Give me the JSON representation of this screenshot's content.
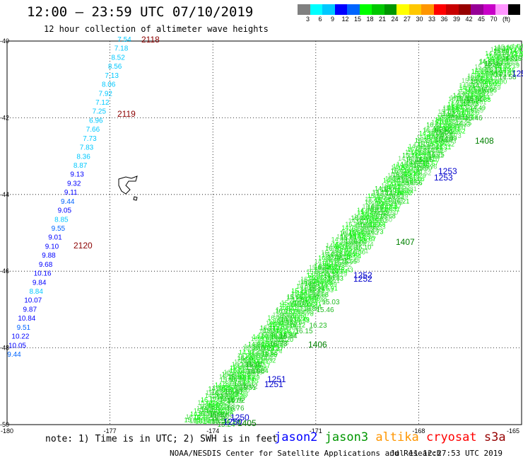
{
  "header": {
    "title": "12:00 – 23:59 UTC 07/10/2019",
    "subtitle": "12 hour collection of altimeter wave heights"
  },
  "scale": {
    "colors": [
      "#808080",
      "#00ffff",
      "#00c8ff",
      "#0000ff",
      "#0064ff",
      "#00ff00",
      "#00c800",
      "#009600",
      "#ffff00",
      "#ffc800",
      "#ff9600",
      "#ff0000",
      "#c80000",
      "#960000",
      "#960096",
      "#c800c8",
      "#ff96ff",
      "#000000"
    ],
    "labels": [
      "3",
      "6",
      "9",
      "12",
      "15",
      "18",
      "21",
      "24",
      "27",
      "30",
      "33",
      "36",
      "39",
      "42",
      "45",
      "70",
      "(ft)"
    ]
  },
  "chart_data": {
    "type": "scatter",
    "xlim": [
      -180,
      -165
    ],
    "ylim": [
      -50,
      -40
    ],
    "x_ticks": [
      "-180",
      "-177",
      "-174",
      "-171",
      "-168",
      "-165"
    ],
    "y_ticks": [
      "-40",
      "-42",
      "-44",
      "-46",
      "-48",
      "-50"
    ],
    "grid": true,
    "west_track_swh": [
      "7.54",
      "7.18",
      "8.52",
      "8.56",
      "7.13",
      "8.06",
      "7.92",
      "7.12",
      "7.25",
      "6.96",
      "7.66",
      "7.73",
      "7.83",
      "8.36",
      "8.87",
      "9.13",
      "9.32",
      "9.11",
      "9.44",
      "9.05",
      "8.85",
      "9.55",
      "9.01",
      "9.10",
      "9.88",
      "9.68",
      "10.16",
      "9.84",
      "8.84",
      "10.07",
      "9.87",
      "10.84",
      "9.51",
      "10.22",
      "10.05",
      "9.44"
    ],
    "west_times": [
      "2118",
      "2119",
      "2120"
    ],
    "east_swh_visible": [
      "15.46",
      "15.16",
      "15.46",
      "15.10",
      "15.50",
      "15.15",
      "15.03",
      "15.46",
      "16.23",
      "16.15",
      "16.64",
      "16.73",
      "16.02",
      "16.90",
      "16.91",
      "16.02",
      "16.40",
      "16.76",
      "15.16",
      "15.50",
      "15.52",
      "15.40",
      "15.24",
      "14.58"
    ],
    "east_times_jason3": [
      "1408",
      "1407",
      "1406",
      "1405"
    ],
    "east_times_jason2": [
      "1253",
      "1253",
      "1252",
      "1252",
      "1251",
      "1251",
      "1250",
      "1250",
      "1252"
    ]
  },
  "footer": {
    "note": "note: 1) Time is in UTC; 2) SWH is in feet",
    "satellites": [
      {
        "name": "jason2",
        "color": "#0000ff"
      },
      {
        "name": "jason3",
        "color": "#009600"
      },
      {
        "name": "altika",
        "color": "#ff9600"
      },
      {
        "name": "cryosat",
        "color": "#ff0000"
      },
      {
        "name": "s3a",
        "color": "#960000"
      }
    ],
    "source": "NOAA/NESDIS Center for Satellite Applications and Research",
    "timestamp": "Jul 11 12:27:53 UTC 2019"
  }
}
